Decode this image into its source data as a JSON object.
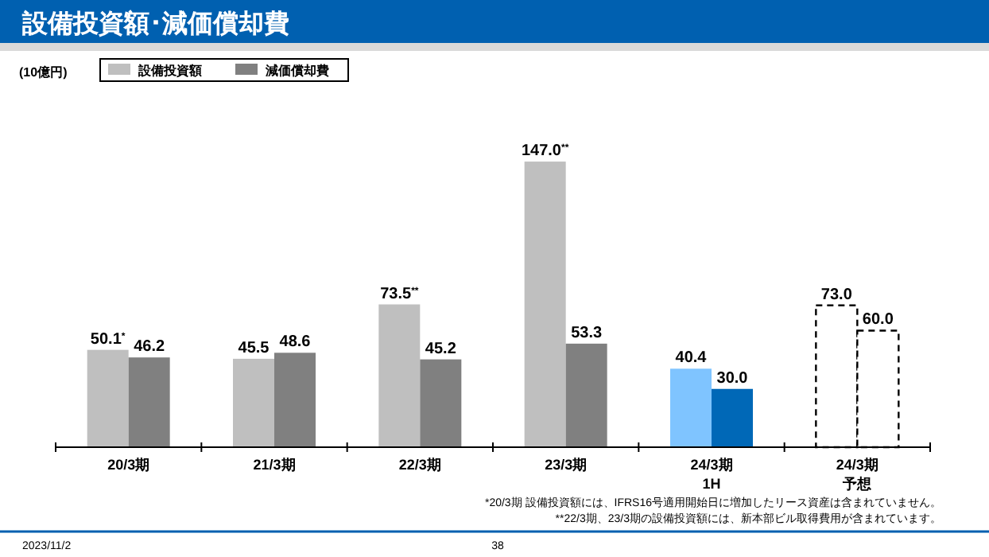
{
  "chart_data": {
    "type": "bar",
    "title": "設備投資額･減価償却費",
    "categories": [
      "20/3期",
      "21/3期",
      "22/3期",
      "23/3期",
      "24/3期1H",
      "24/3期予想"
    ],
    "series": [
      {
        "name": "設備投資額",
        "color": "#bfbfbf",
        "colors": [
          "#bfbfbf",
          "#bfbfbf",
          "#bfbfbf",
          "#bfbfbf",
          "#7fc4ff",
          "#ffffff"
        ],
        "values": [
          50.1,
          45.5,
          73.5,
          147.0,
          40.4,
          73.0
        ],
        "value_labels": [
          "50.1$^{*}$",
          "45.5",
          "73.5$^{**}$",
          "147.0$^{**}$",
          "40.4",
          "73.0"
        ]
      },
      {
        "name": "減価償却費",
        "color": "#808080",
        "colors": [
          "#808080",
          "#808080",
          "#808080",
          "#808080",
          "#0068b7",
          "#ffffff"
        ],
        "values": [
          46.2,
          48.6,
          45.2,
          53.3,
          30.0,
          60.0
        ],
        "value_labels": [
          "46.2",
          "48.6",
          "45.2",
          "53.3",
          "30.0",
          "60.0"
        ]
      }
    ],
    "legend": "top left",
    "annotations": [
      "(10億円)",
      "*20/3期 設備投資額には、IFRS16号適用開始日に増加したリース資産は含まれていません。",
      "**22/3期、23/3期の設備投資額には、新本部ビル取得費用が含まれています。",
      "2023/11/2",
      "38"
    ]
  }
}
